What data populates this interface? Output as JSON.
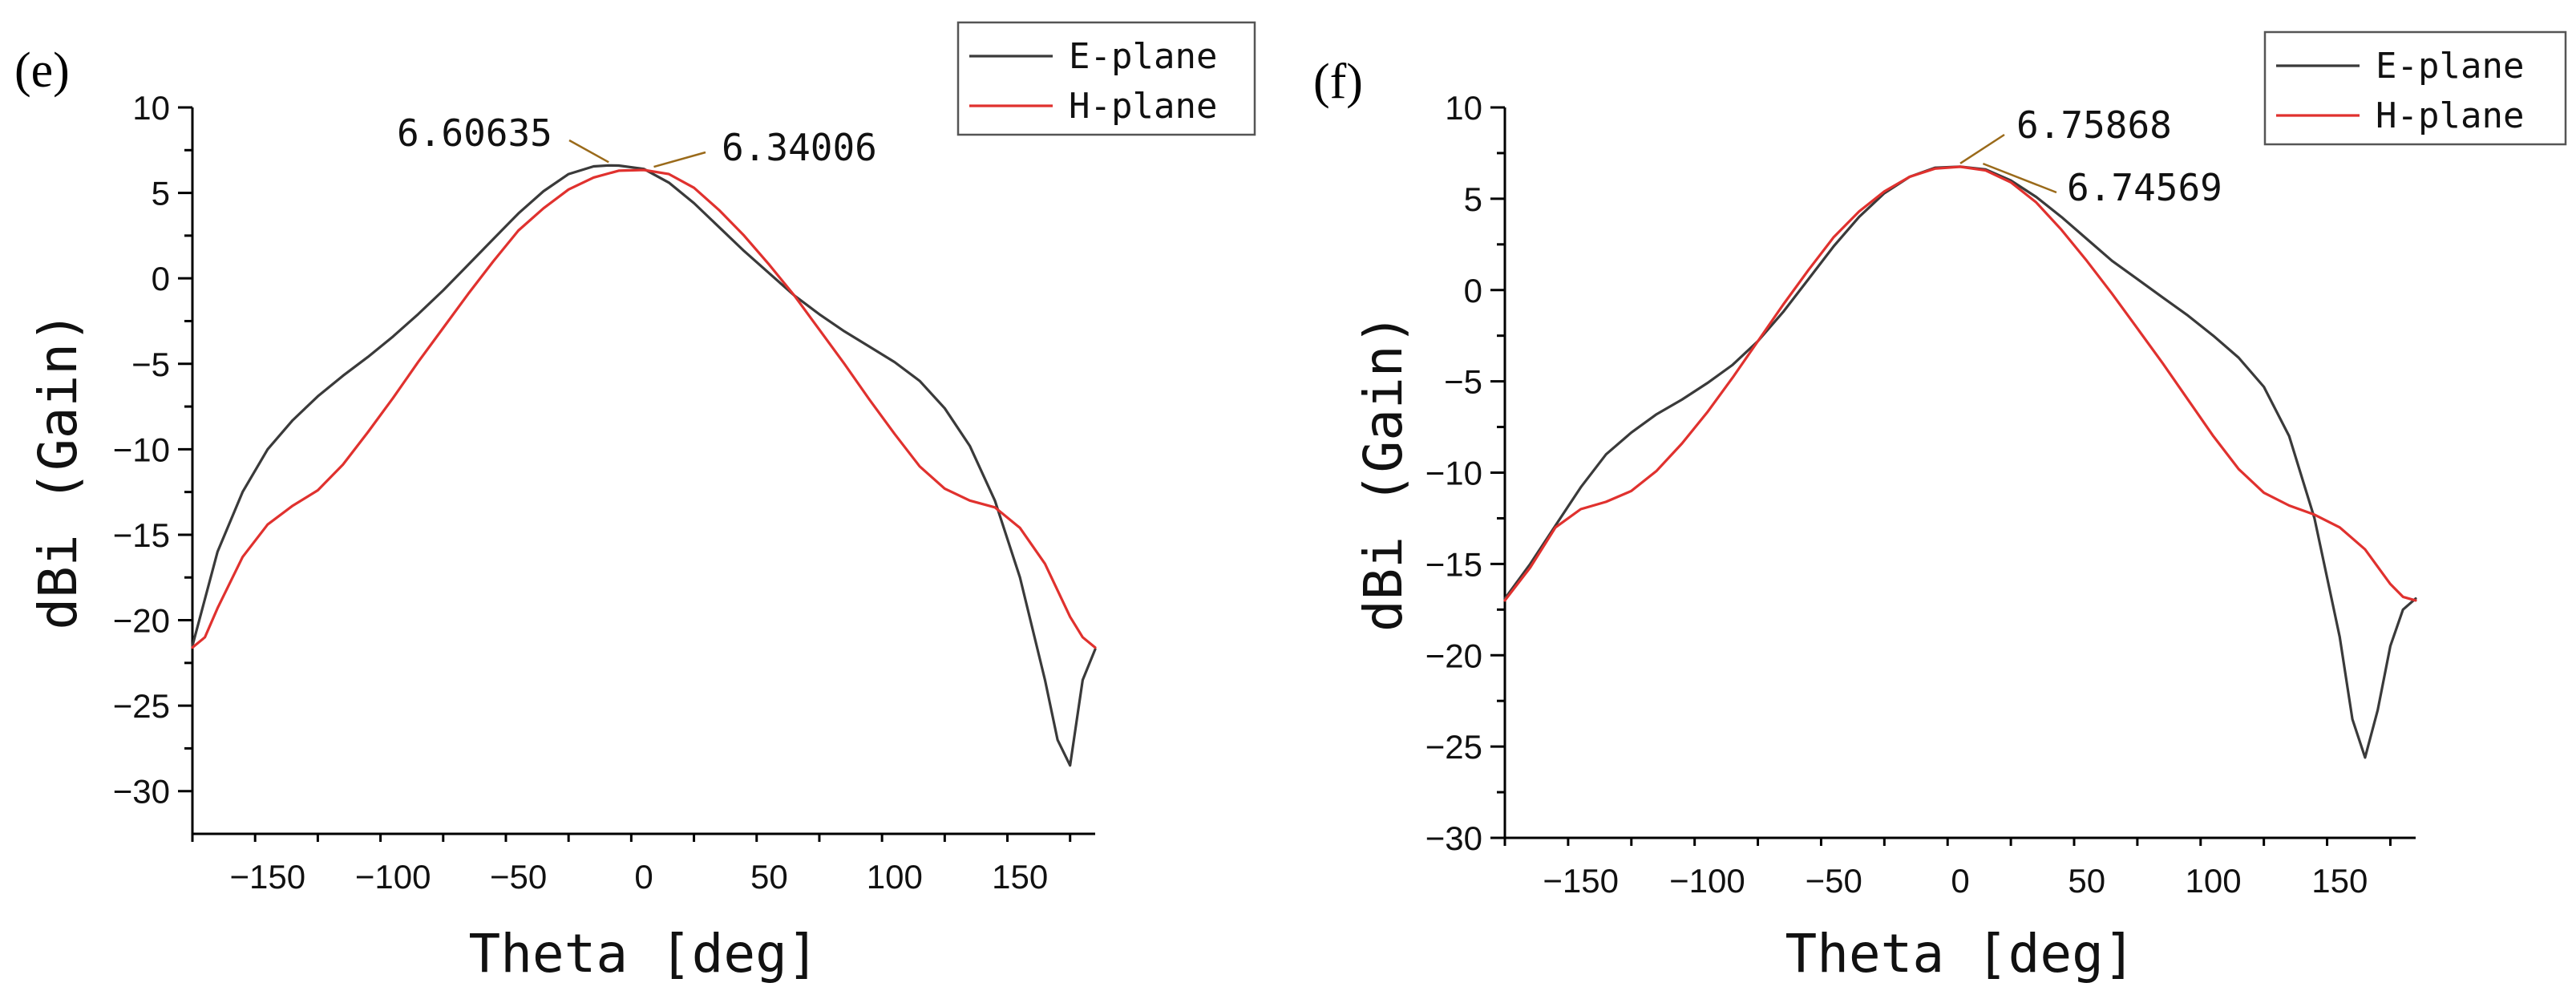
{
  "chart_data": [
    {
      "panel_label": "(e)",
      "type": "line",
      "xlabel": "Theta [deg]",
      "ylabel": "dBi (Gain)",
      "xlim": [
        -180,
        180
      ],
      "ylim": [
        -32.5,
        10
      ],
      "xticks": [
        -150,
        -100,
        -50,
        0,
        50,
        100,
        150
      ],
      "yticks": [
        10,
        5,
        0,
        -5,
        -10,
        -15,
        -20,
        -25,
        -30
      ],
      "legend": {
        "position": "top-right",
        "entries": [
          "E-plane",
          "H-plane"
        ]
      },
      "series": [
        {
          "name": "E-plane",
          "color": "#3a3a3a",
          "x": [
            -180,
            -170,
            -160,
            -150,
            -140,
            -130,
            -120,
            -110,
            -100,
            -90,
            -80,
            -70,
            -60,
            -50,
            -40,
            -30,
            -20,
            -14,
            -10,
            0,
            10,
            20,
            30,
            40,
            50,
            60,
            70,
            80,
            90,
            100,
            110,
            120,
            130,
            140,
            150,
            160,
            165,
            170,
            175,
            180
          ],
          "y": [
            -21.5,
            -16,
            -12.5,
            -10,
            -8.3,
            -6.9,
            -5.7,
            -4.6,
            -3.4,
            -2.1,
            -0.7,
            0.8,
            2.3,
            3.8,
            5.1,
            6.1,
            6.55,
            6.61,
            6.6,
            6.4,
            5.6,
            4.4,
            3.0,
            1.6,
            0.3,
            -1.0,
            -2.1,
            -3.1,
            -4.0,
            -4.9,
            -6.0,
            -7.6,
            -9.8,
            -13.0,
            -17.5,
            -23.5,
            -27,
            -28.5,
            -23.5,
            -21.7
          ]
        },
        {
          "name": "H-plane",
          "color": "#e0312e",
          "x": [
            -180,
            -175,
            -170,
            -160,
            -150,
            -140,
            -130,
            -120,
            -110,
            -100,
            -90,
            -80,
            -70,
            -60,
            -50,
            -40,
            -30,
            -20,
            -10,
            0,
            10,
            20,
            30,
            40,
            50,
            60,
            70,
            80,
            90,
            100,
            110,
            120,
            130,
            140,
            150,
            160,
            170,
            175,
            180
          ],
          "y": [
            -21.6,
            -21,
            -19.3,
            -16.3,
            -14.4,
            -13.3,
            -12.4,
            -10.9,
            -9.0,
            -7.0,
            -4.9,
            -2.9,
            -0.9,
            1.0,
            2.8,
            4.1,
            5.2,
            5.9,
            6.3,
            6.34,
            6.1,
            5.3,
            4.0,
            2.5,
            0.8,
            -1.0,
            -3.0,
            -5.0,
            -7.1,
            -9.1,
            -11.0,
            -12.3,
            -13.0,
            -13.4,
            -14.6,
            -16.7,
            -19.8,
            -21.0,
            -21.6
          ]
        }
      ],
      "annotations": [
        {
          "text": "6.60635",
          "x": -14,
          "y": 6.60635
        },
        {
          "text": "6.34006",
          "x": 4,
          "y": 6.34006
        }
      ]
    },
    {
      "panel_label": "(f)",
      "type": "line",
      "xlabel": "Theta [deg]",
      "ylabel": "dBi (Gain)",
      "xlim": [
        -180,
        180
      ],
      "ylim": [
        -30,
        10
      ],
      "xticks": [
        -150,
        -100,
        -50,
        0,
        50,
        100,
        150
      ],
      "yticks": [
        10,
        5,
        0,
        -5,
        -10,
        -15,
        -20,
        -25,
        -30
      ],
      "legend": {
        "position": "top-right",
        "entries": [
          "E-plane",
          "H-plane"
        ]
      },
      "series": [
        {
          "name": "E-plane",
          "color": "#3a3a3a",
          "x": [
            -180,
            -170,
            -160,
            -150,
            -140,
            -130,
            -120,
            -110,
            -100,
            -90,
            -80,
            -70,
            -60,
            -50,
            -40,
            -30,
            -20,
            -10,
            0,
            10,
            20,
            30,
            40,
            50,
            60,
            70,
            80,
            90,
            100,
            110,
            120,
            130,
            140,
            150,
            155,
            160,
            165,
            170,
            175,
            180
          ],
          "y": [
            -16.9,
            -15,
            -12.9,
            -10.8,
            -9.0,
            -7.8,
            -6.8,
            -6.0,
            -5.1,
            -4.1,
            -2.8,
            -1.2,
            0.6,
            2.4,
            4.0,
            5.3,
            6.2,
            6.7,
            6.76,
            6.6,
            6.0,
            5.1,
            4.0,
            2.8,
            1.6,
            0.6,
            -0.4,
            -1.4,
            -2.5,
            -3.7,
            -5.3,
            -8.0,
            -12.5,
            -19.0,
            -23.5,
            -25.6,
            -23.0,
            -19.5,
            -17.5,
            -16.9
          ]
        },
        {
          "name": "H-plane",
          "color": "#e0312e",
          "x": [
            -180,
            -170,
            -160,
            -150,
            -140,
            -130,
            -120,
            -110,
            -100,
            -90,
            -80,
            -70,
            -60,
            -50,
            -40,
            -30,
            -20,
            -10,
            0,
            10,
            20,
            30,
            40,
            50,
            60,
            70,
            80,
            90,
            100,
            110,
            120,
            130,
            140,
            150,
            160,
            170,
            175,
            180
          ],
          "y": [
            -17.0,
            -15.2,
            -13.0,
            -12.0,
            -11.6,
            -11.0,
            -9.9,
            -8.4,
            -6.7,
            -4.8,
            -2.8,
            -0.8,
            1.1,
            2.9,
            4.3,
            5.4,
            6.2,
            6.65,
            6.75,
            6.55,
            5.9,
            4.8,
            3.3,
            1.6,
            -0.2,
            -2.1,
            -4.0,
            -6.0,
            -8.0,
            -9.8,
            -11.1,
            -11.8,
            -12.3,
            -13.0,
            -14.2,
            -16.1,
            -16.8,
            -17.0
          ]
        }
      ],
      "annotations": [
        {
          "text": "6.75868",
          "x": 0,
          "y": 6.75868
        },
        {
          "text": "6.74569",
          "x": 9,
          "y": 6.74569
        }
      ]
    }
  ]
}
